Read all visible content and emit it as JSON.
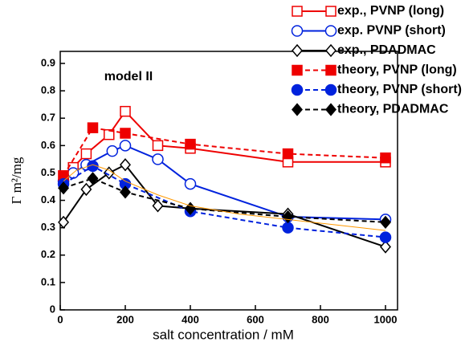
{
  "chart_data": {
    "type": "line",
    "title": "model II",
    "xlabel": "salt concentration / mM",
    "ylabel": "Γ m²/mg",
    "xlim": [
      0,
      1000
    ],
    "ylim": [
      0,
      0.9
    ],
    "xticks": [
      0,
      200,
      400,
      600,
      800,
      1000
    ],
    "yticks": [
      0,
      0.1,
      0.2,
      0.3,
      0.4,
      0.5,
      0.6,
      0.7,
      0.8,
      0.9
    ],
    "legend": "top-right",
    "series": [
      {
        "name": "exp., PVNP (long)",
        "color": "#ee0000",
        "marker": "square",
        "filled": false,
        "dashed": false,
        "x": [
          10,
          40,
          80,
          150,
          200,
          300,
          400,
          700,
          1000
        ],
        "values": [
          0.49,
          0.52,
          0.57,
          0.64,
          0.725,
          0.6,
          0.59,
          0.54,
          0.54
        ]
      },
      {
        "name": "exp. PVNP (short)",
        "color": "#0022dd",
        "marker": "circle",
        "filled": false,
        "dashed": false,
        "x": [
          10,
          40,
          80,
          160,
          200,
          300,
          400,
          700,
          1000
        ],
        "values": [
          0.47,
          0.5,
          0.53,
          0.58,
          0.6,
          0.55,
          0.46,
          0.34,
          0.33
        ]
      },
      {
        "name": "exp., PDADMAC",
        "color": "#000000",
        "marker": "diamond",
        "filled": false,
        "dashed": false,
        "x": [
          10,
          80,
          150,
          200,
          300,
          400,
          700,
          1000
        ],
        "values": [
          0.32,
          0.44,
          0.5,
          0.53,
          0.38,
          0.37,
          0.35,
          0.23
        ]
      },
      {
        "name": "theory, PVNP (long)",
        "color": "#ee0000",
        "marker": "square",
        "filled": true,
        "dashed": true,
        "x": [
          10,
          100,
          200,
          400,
          700,
          1000
        ],
        "values": [
          0.49,
          0.665,
          0.645,
          0.605,
          0.57,
          0.555
        ]
      },
      {
        "name": "theory, PVNP (short)",
        "color": "#0022dd",
        "marker": "circle",
        "filled": true,
        "dashed": true,
        "x": [
          10,
          100,
          200,
          400,
          700,
          1000
        ],
        "values": [
          0.46,
          0.525,
          0.46,
          0.36,
          0.3,
          0.265
        ]
      },
      {
        "name": "theory, PDADMAC",
        "color": "#000000",
        "marker": "diamond",
        "filled": true,
        "dashed": true,
        "x": [
          10,
          100,
          200,
          400,
          700,
          1000
        ],
        "values": [
          0.445,
          0.48,
          0.43,
          0.37,
          0.34,
          0.32
        ]
      },
      {
        "color": "#ff9900",
        "thin": true,
        "x": [
          10,
          50,
          100,
          150,
          200,
          300,
          400,
          550,
          700,
          850,
          1000
        ],
        "values": [
          0.47,
          0.51,
          0.53,
          0.51,
          0.47,
          0.42,
          0.38,
          0.35,
          0.33,
          0.31,
          0.29
        ]
      }
    ]
  }
}
